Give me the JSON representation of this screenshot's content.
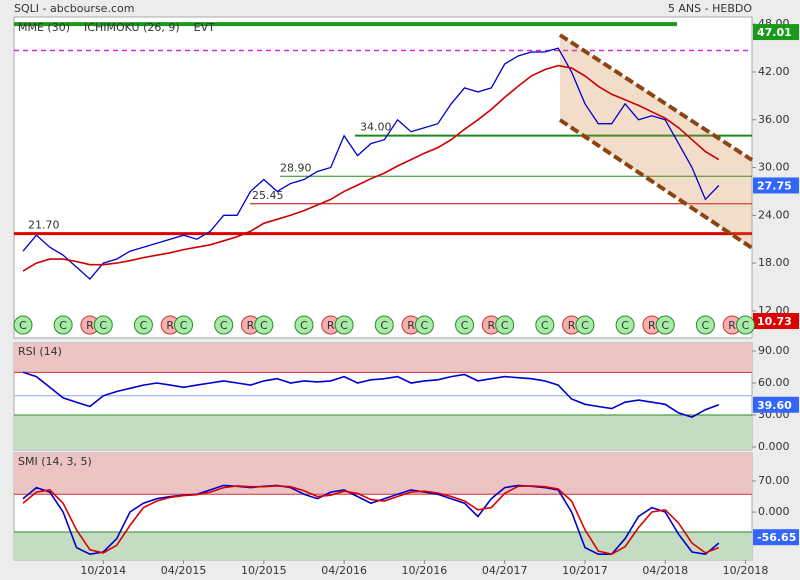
{
  "chart_data": [
    {
      "type": "line",
      "title": "SQLI - abcbourse.com",
      "subtitle": "5 ANS - HEBDO",
      "x": [
        "04/2014",
        "05/2014",
        "06/2014",
        "07/2014",
        "08/2014",
        "09/2014",
        "10/2014",
        "11/2014",
        "12/2014",
        "01/2015",
        "02/2015",
        "03/2015",
        "04/2015",
        "05/2015",
        "06/2015",
        "07/2015",
        "08/2015",
        "09/2015",
        "10/2015",
        "11/2015",
        "12/2015",
        "01/2016",
        "02/2016",
        "03/2016",
        "04/2016",
        "05/2016",
        "06/2016",
        "07/2016",
        "08/2016",
        "09/2016",
        "10/2016",
        "11/2016",
        "12/2016",
        "01/2017",
        "02/2017",
        "03/2017",
        "04/2017",
        "05/2017",
        "06/2017",
        "07/2017",
        "08/2017",
        "09/2017",
        "10/2017",
        "11/2017",
        "12/2017",
        "01/2018",
        "02/2018",
        "03/2018",
        "04/2018",
        "05/2018",
        "06/2018",
        "07/2018",
        "08/2018"
      ],
      "xticks": [
        "10/2014",
        "04/2015",
        "10/2015",
        "04/2016",
        "10/2016",
        "04/2017",
        "10/2017",
        "04/2018",
        "10/2018"
      ],
      "series": [
        {
          "color": "#0000cc",
          "values": [
            19.5,
            21.5,
            20,
            19,
            17.5,
            16,
            18,
            18.5,
            19.5,
            20,
            20.5,
            21,
            21.5,
            21,
            22,
            24,
            24,
            27,
            28.5,
            27,
            28,
            28.5,
            29.5,
            30,
            34,
            31.5,
            33,
            33.5,
            36,
            34.5,
            35,
            35.5,
            38,
            40,
            39.5,
            40,
            43,
            44,
            44.5,
            44.5,
            45,
            42,
            38,
            35.5,
            35.5,
            38,
            36,
            36.5,
            36,
            33,
            30,
            26,
            27.75
          ]
        },
        {
          "name": "MME (30)",
          "color": "#cc0000",
          "values": [
            17,
            18,
            18.5,
            18.5,
            18.2,
            17.8,
            17.8,
            18,
            18.3,
            18.7,
            19,
            19.3,
            19.7,
            20,
            20.3,
            20.8,
            21.3,
            22,
            23,
            23.5,
            24,
            24.6,
            25.3,
            26,
            27,
            27.8,
            28.6,
            29.3,
            30.2,
            31,
            31.8,
            32.5,
            33.5,
            34.8,
            36,
            37.3,
            38.8,
            40.2,
            41.5,
            42.3,
            42.8,
            42.5,
            41.5,
            40.2,
            39.2,
            38.5,
            37.8,
            37,
            36.2,
            35,
            33.5,
            32,
            31
          ]
        }
      ],
      "legend_extra": [
        {
          "name": "ICHIMOKU (26, 9)",
          "color": "#0000cc"
        },
        {
          "name": "EVT",
          "color": "#0000cc"
        }
      ],
      "ylim": [
        8.6,
        48.9
      ],
      "yticks": [
        {
          "value": 48,
          "label": "48.00"
        },
        {
          "value": 42,
          "label": "42.00"
        },
        {
          "value": 36,
          "label": "36.00"
        },
        {
          "value": 30,
          "label": "30.00"
        },
        {
          "value": 24,
          "label": "24.00"
        },
        {
          "value": 18,
          "label": "18.00"
        },
        {
          "value": 12,
          "label": "12.00"
        }
      ],
      "levels": [
        {
          "value": 48,
          "color": "#1a9a1a",
          "width": 4
        },
        {
          "value": 44.7,
          "color": "#e020e0",
          "width": 1.5,
          "dashed": true
        },
        {
          "value": 34,
          "color": "#1a8a1a",
          "width": 2,
          "label": {
            "value": 34,
            "label": "34.00"
          }
        },
        {
          "value": 28.9,
          "color": "#1a8a1a",
          "width": 1,
          "label": {
            "value": 28.9,
            "label": "28.90"
          }
        },
        {
          "value": 25.45,
          "color": "#cc0000",
          "width": 1,
          "label": 25.45
        },
        {
          "value": 21.7,
          "color": "#dd0000",
          "width": 3,
          "label": {
            "value": 21.7,
            "label": "21.70"
          }
        }
      ],
      "tags": [
        {
          "value": 47.01,
          "color": "#1a9a1a"
        },
        {
          "value": 27.75,
          "color": "#3366ff"
        },
        {
          "value": 10.73,
          "color": "#dd0000"
        }
      ],
      "signals": [
        {
          "x": "04/2014",
          "label": "C"
        },
        {
          "x": "07/2014",
          "label": "C"
        },
        {
          "x": "09/2014",
          "label": "R"
        },
        {
          "x": "10/2014",
          "label": "C"
        },
        {
          "x": "01/2015",
          "label": "C"
        },
        {
          "x": "03/2015",
          "label": "R"
        },
        {
          "x": "04/2015",
          "label": "C"
        },
        {
          "x": "07/2015",
          "label": "C"
        },
        {
          "x": "09/2015",
          "label": "R"
        },
        {
          "x": "10/2015",
          "label": "C"
        },
        {
          "x": "01/2016",
          "label": "C"
        },
        {
          "x": "03/2016",
          "label": "R"
        },
        {
          "x": "04/2016",
          "label": "C"
        },
        {
          "x": "07/2016",
          "label": "C"
        },
        {
          "x": "09/2016",
          "label": "R"
        },
        {
          "x": "10/2016",
          "label": "C"
        },
        {
          "x": "01/2017",
          "label": "C"
        },
        {
          "x": "03/2017",
          "label": "R"
        },
        {
          "x": "04/2017",
          "label": "C"
        },
        {
          "x": "07/2017",
          "label": "C"
        },
        {
          "x": "09/2017",
          "label": "R"
        },
        {
          "x": "10/2017",
          "label": "C"
        },
        {
          "x": "01/2018",
          "label": "C"
        },
        {
          "x": "03/2018",
          "label": "R"
        },
        {
          "x": "04/2018",
          "label": "C"
        },
        {
          "x": "07/2018",
          "label": "C"
        },
        {
          "x": "09/2018",
          "label": "R"
        },
        {
          "x": "10/2018",
          "label": "C"
        }
      ]
    },
    {
      "type": "line",
      "title": "RSI (14)",
      "series": [
        {
          "color": "#0000cc",
          "values": [
            70,
            66,
            56,
            46,
            42,
            38,
            48,
            52,
            55,
            58,
            60,
            58,
            56,
            58,
            60,
            62,
            60,
            58,
            62,
            64,
            60,
            62,
            61,
            62,
            66,
            60,
            63,
            64,
            66,
            60,
            62,
            63,
            66,
            68,
            62,
            64,
            66,
            65,
            64,
            62,
            58,
            45,
            40,
            38,
            36,
            42,
            44,
            42,
            40,
            32,
            28,
            35,
            39.6
          ]
        }
      ],
      "ylim": [
        -2.8,
        97.5
      ],
      "yticks": [
        {
          "value": 90,
          "label": "90.00"
        },
        {
          "value": 60,
          "label": "60.00"
        },
        {
          "value": 30,
          "label": "30.00"
        },
        {
          "value": 0,
          "label": "0.000"
        }
      ],
      "zones": [
        {
          "above": 70,
          "color": "#ecc4c4",
          "line": "#cc3333"
        },
        {
          "below": 30,
          "color": "#c6dcc2",
          "line": "#2a8a2a"
        }
      ],
      "levels": [
        {
          "value": 48,
          "color": "#88aaff",
          "width": 1
        }
      ],
      "tags": [
        {
          "value": 39.6,
          "label": "39.60",
          "color": "#3366ff"
        }
      ]
    },
    {
      "type": "line",
      "title": "SMI (14, 3, 5)",
      "series": [
        {
          "color": "#0000cc",
          "values": [
            30,
            55,
            45,
            0,
            -80,
            -95,
            -90,
            -60,
            0,
            20,
            30,
            35,
            38,
            40,
            50,
            60,
            58,
            55,
            58,
            60,
            55,
            40,
            30,
            45,
            50,
            35,
            20,
            30,
            40,
            50,
            45,
            40,
            30,
            20,
            -10,
            30,
            55,
            60,
            58,
            55,
            50,
            0,
            -80,
            -95,
            -95,
            -60,
            -10,
            10,
            0,
            -50,
            -90,
            -95,
            -70
          ]
        },
        {
          "color": "#dd0000",
          "values": [
            20,
            45,
            50,
            20,
            -40,
            -85,
            -92,
            -75,
            -30,
            10,
            25,
            33,
            37,
            39,
            45,
            55,
            59,
            57,
            57,
            59,
            57,
            48,
            35,
            38,
            47,
            42,
            28,
            25,
            35,
            45,
            47,
            43,
            35,
            25,
            5,
            10,
            42,
            58,
            59,
            57,
            52,
            25,
            -40,
            -88,
            -95,
            -78,
            -35,
            0,
            5,
            -25,
            -70,
            -92,
            -80
          ]
        }
      ],
      "ylim": [
        -108,
        133
      ],
      "yticks": [
        {
          "value": 70,
          "label": "70.00"
        },
        {
          "value": 0,
          "label": "0.000"
        }
      ],
      "zones": [
        {
          "above": 40,
          "color": "#ecc4c4",
          "line": "#cc3333"
        },
        {
          "below": -45,
          "color": "#c6dcc2",
          "line": "#2a8a2a"
        }
      ],
      "tags": [
        {
          "value": -56.65,
          "color": "#3366ff"
        }
      ]
    }
  ]
}
